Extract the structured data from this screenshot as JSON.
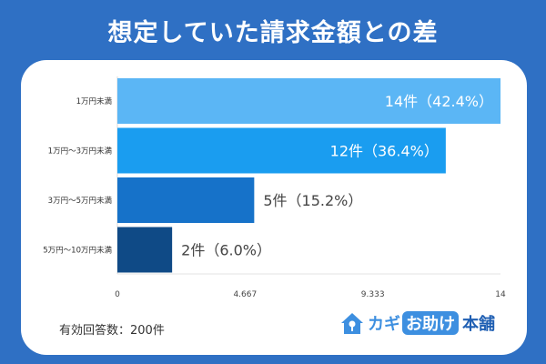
{
  "title": "想定していた請求金額との差",
  "footnote": "有効回答数：200件",
  "logo": {
    "text_a": "カギ",
    "text_b": "お助け",
    "text_c": "本舗",
    "mark_icon": "house-key-icon"
  },
  "colors": {
    "background": "#2f70c4",
    "bars": [
      "#5bb6f5",
      "#1a9df0",
      "#1672c9",
      "#0f4a86"
    ]
  },
  "chart_data": {
    "type": "bar",
    "orientation": "horizontal",
    "title": "想定していた請求金額との差",
    "categories": [
      "1万円未満",
      "1万円〜3万円未満",
      "3万円〜5万円未満",
      "5万円〜10万円未満"
    ],
    "values": [
      14,
      12,
      5,
      2
    ],
    "data_labels": [
      "14件（42.4%）",
      "12件（36.4%）",
      "5件（15.2%）",
      "2件（6.0%）"
    ],
    "xlim": [
      0,
      14
    ],
    "xticks": [
      "0",
      "4.667",
      "9.333",
      "14"
    ],
    "grid": false,
    "legend": "none"
  }
}
